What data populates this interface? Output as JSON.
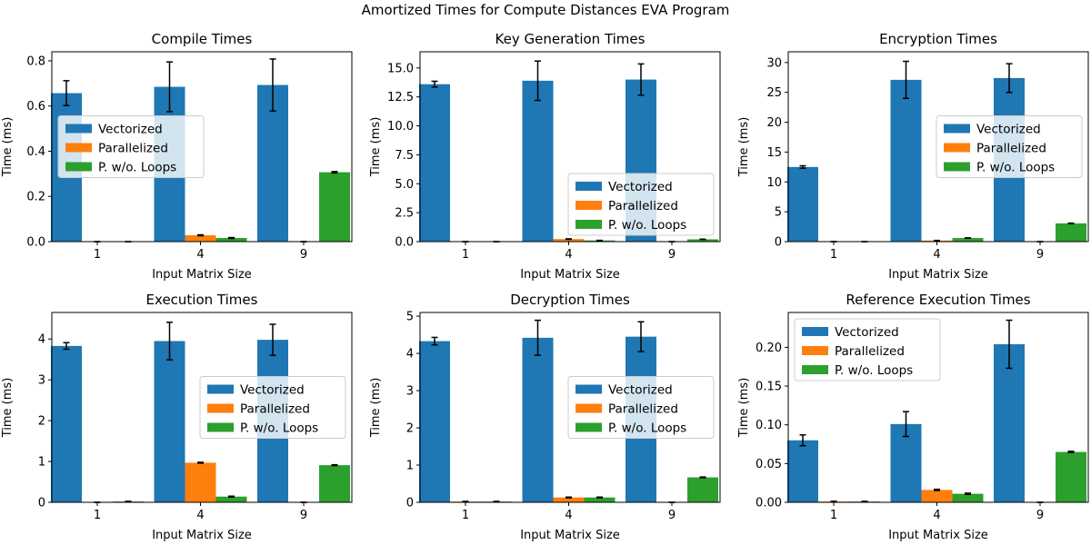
{
  "figure": {
    "suptitle": "Amortized Times for Compute Distances EVA Program"
  },
  "chart_data": [
    {
      "type": "bar",
      "title": "Compile Times",
      "xlabel": "Input Matrix Size",
      "ylabel": "Time (ms)",
      "categories": [
        "1",
        "4",
        "9"
      ],
      "ylim": [
        0,
        0.84
      ],
      "yticks": [
        0.0,
        0.2,
        0.4,
        0.6,
        0.8
      ],
      "ytick_labels": [
        "0.0",
        "0.2",
        "0.4",
        "0.6",
        "0.8"
      ],
      "legend_loc": "center-left",
      "series": [
        {
          "name": "Vectorized",
          "values": [
            0.657,
            0.685,
            0.693
          ],
          "errors": [
            0.055,
            0.11,
            0.115
          ]
        },
        {
          "name": "Parallelized",
          "values": [
            0.0,
            0.028,
            0.0
          ],
          "errors": [
            0.0,
            0.002,
            0.0
          ]
        },
        {
          "name": "P. w/o. Loops",
          "values": [
            0.0,
            0.016,
            0.307
          ],
          "errors": [
            0.0,
            0.002,
            0.003
          ]
        }
      ]
    },
    {
      "type": "bar",
      "title": "Key Generation Times",
      "xlabel": "Input Matrix Size",
      "ylabel": "Time (ms)",
      "categories": [
        "1",
        "4",
        "9"
      ],
      "ylim": [
        0,
        16.4
      ],
      "yticks": [
        0.0,
        2.5,
        5.0,
        7.5,
        10.0,
        12.5,
        15.0
      ],
      "ytick_labels": [
        "0.0",
        "2.5",
        "5.0",
        "7.5",
        "10.0",
        "12.5",
        "15.0"
      ],
      "legend_loc": "lower-right",
      "series": [
        {
          "name": "Vectorized",
          "values": [
            13.6,
            13.9,
            14.0
          ],
          "errors": [
            0.25,
            1.7,
            1.35
          ]
        },
        {
          "name": "Parallelized",
          "values": [
            0.0,
            0.22,
            0.0
          ],
          "errors": [
            0.0,
            0.02,
            0.0
          ]
        },
        {
          "name": "P. w/o. Loops",
          "values": [
            0.0,
            0.1,
            0.2
          ],
          "errors": [
            0.0,
            0.01,
            0.01
          ]
        }
      ]
    },
    {
      "type": "bar",
      "title": "Encryption Times",
      "xlabel": "Input Matrix Size",
      "ylabel": "Time (ms)",
      "categories": [
        "1",
        "4",
        "9"
      ],
      "ylim": [
        0,
        31.8
      ],
      "yticks": [
        0,
        5,
        10,
        15,
        20,
        25,
        30
      ],
      "ytick_labels": [
        "0",
        "5",
        "10",
        "15",
        "20",
        "25",
        "30"
      ],
      "legend_loc": "center-right",
      "series": [
        {
          "name": "Vectorized",
          "values": [
            12.5,
            27.1,
            27.4
          ],
          "errors": [
            0.2,
            3.1,
            2.4
          ]
        },
        {
          "name": "Parallelized",
          "values": [
            0.0,
            0.18,
            0.0
          ],
          "errors": [
            0.0,
            0.02,
            0.0
          ]
        },
        {
          "name": "P. w/o. Loops",
          "values": [
            0.0,
            0.6,
            3.05
          ],
          "errors": [
            0.0,
            0.03,
            0.05
          ]
        }
      ]
    },
    {
      "type": "bar",
      "title": "Execution Times",
      "xlabel": "Input Matrix Size",
      "ylabel": "Time (ms)",
      "categories": [
        "1",
        "4",
        "9"
      ],
      "ylim": [
        0,
        4.65
      ],
      "yticks": [
        0,
        1,
        2,
        3,
        4
      ],
      "ytick_labels": [
        "0",
        "1",
        "2",
        "3",
        "4"
      ],
      "legend_loc": "center-right",
      "series": [
        {
          "name": "Vectorized",
          "values": [
            3.83,
            3.95,
            3.98
          ],
          "errors": [
            0.08,
            0.46,
            0.38
          ]
        },
        {
          "name": "Parallelized",
          "values": [
            0.0,
            0.97,
            0.0
          ],
          "errors": [
            0.0,
            0.01,
            0.0
          ]
        },
        {
          "name": "P. w/o. Loops",
          "values": [
            0.02,
            0.14,
            0.91
          ],
          "errors": [
            0.005,
            0.01,
            0.01
          ]
        }
      ]
    },
    {
      "type": "bar",
      "title": "Decryption Times",
      "xlabel": "Input Matrix Size",
      "ylabel": "Time (ms)",
      "categories": [
        "1",
        "4",
        "9"
      ],
      "ylim": [
        0,
        5.1
      ],
      "yticks": [
        0,
        1,
        2,
        3,
        4,
        5
      ],
      "ytick_labels": [
        "0",
        "1",
        "2",
        "3",
        "4",
        "5"
      ],
      "legend_loc": "center-right",
      "series": [
        {
          "name": "Vectorized",
          "values": [
            4.33,
            4.42,
            4.45
          ],
          "errors": [
            0.1,
            0.47,
            0.4
          ]
        },
        {
          "name": "Parallelized",
          "values": [
            0.02,
            0.13,
            0.0
          ],
          "errors": [
            0.005,
            0.01,
            0.0
          ]
        },
        {
          "name": "P. w/o. Loops",
          "values": [
            0.02,
            0.13,
            0.67
          ],
          "errors": [
            0.005,
            0.01,
            0.01
          ]
        }
      ]
    },
    {
      "type": "bar",
      "title": "Reference Execution Times",
      "xlabel": "Input Matrix Size",
      "ylabel": "Time (ms)",
      "categories": [
        "1",
        "4",
        "9"
      ],
      "ylim": [
        0,
        0.245
      ],
      "yticks": [
        0.0,
        0.05,
        0.1,
        0.15,
        0.2
      ],
      "ytick_labels": [
        "0.00",
        "0.05",
        "0.10",
        "0.15",
        "0.20"
      ],
      "legend_loc": "upper-left",
      "series": [
        {
          "name": "Vectorized",
          "values": [
            0.08,
            0.101,
            0.204
          ],
          "errors": [
            0.007,
            0.016,
            0.031
          ]
        },
        {
          "name": "Parallelized",
          "values": [
            0.001,
            0.016,
            0.0
          ],
          "errors": [
            0.0003,
            0.0008,
            0.0
          ]
        },
        {
          "name": "P. w/o. Loops",
          "values": [
            0.001,
            0.011,
            0.065
          ],
          "errors": [
            0.0003,
            0.0008,
            0.0008
          ]
        }
      ]
    }
  ],
  "colors": {
    "series": [
      "#1f77b4",
      "#ff7f0e",
      "#2ca02c"
    ],
    "axis": "#000000",
    "errorbar": "#000000",
    "legend_border": "#cccccc"
  }
}
